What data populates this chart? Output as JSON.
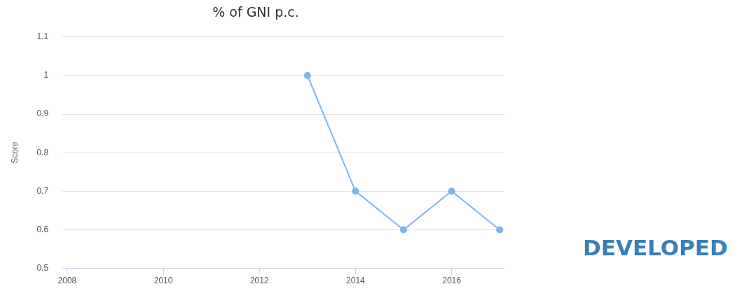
{
  "chart_data": {
    "type": "line",
    "title": "% of GNI p.c.",
    "ylabel": "Score",
    "x": [
      2013,
      2014,
      2015,
      2016,
      2017
    ],
    "series": [
      {
        "color": "#7cb5ec",
        "values": [
          1,
          0.7,
          0.6,
          0.7,
          0.6
        ]
      }
    ],
    "xlim": [
      2007.9,
      2017.1
    ],
    "xticks": [
      2008,
      2010,
      2012,
      2014,
      2016
    ],
    "ylim": [
      0.5,
      1.1
    ],
    "yticks": [
      0.5,
      0.6,
      0.7,
      0.8,
      0.9,
      1,
      1.1
    ],
    "grid": "y",
    "legend": false,
    "marker": "circle",
    "line_style": "solid",
    "annotations": [
      "DEVELOPED"
    ]
  }
}
